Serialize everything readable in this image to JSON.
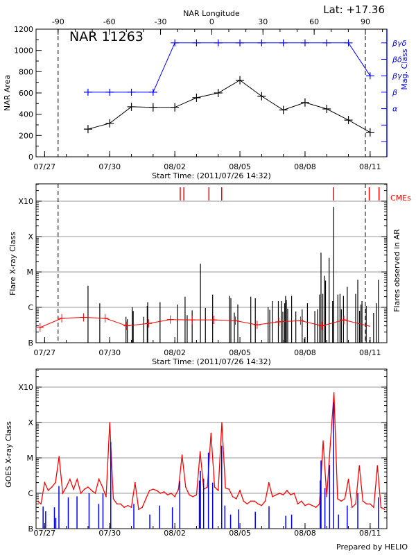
{
  "header": {
    "lat_label": "Lat: +17.36",
    "credit": "Prepared by HELIO"
  },
  "colors": {
    "area": "#000000",
    "mag": "#0000ff",
    "avg": "#ff0000",
    "cme": "#ff0000",
    "flare": "#000000",
    "goes_long": "#ff0000",
    "goes_short": "#0000ff",
    "grid": "#999999"
  },
  "chart_data": [
    {
      "type": "line",
      "title": "NAR 11263",
      "xlabel": "Start Time: (2011/07/26 14:32)",
      "ylabel": "NAR Area",
      "y2label": "Mag. Class",
      "top_axis_label": "NAR Longitude",
      "top_axis_ticks": [
        -90,
        -60,
        -30,
        0,
        30,
        60,
        90
      ],
      "ylim": [
        0,
        1200
      ],
      "yticks": [
        0,
        200,
        400,
        600,
        800,
        1000,
        1200
      ],
      "x_tick_labels": [
        "07/27",
        "07/30",
        "08/02",
        "08/05",
        "08/08",
        "08/11"
      ],
      "mag_levels": [
        "",
        "",
        "α",
        "β",
        "βγ",
        "βδ",
        "βγδ"
      ],
      "limb_longitudes": [
        -90,
        90
      ],
      "series": [
        {
          "name": "NAR Area",
          "x": [
            "2011-07-29T00:00",
            "2011-07-30T00:00",
            "2011-07-31T00:00",
            "2011-08-01T00:00",
            "2011-08-02T00:00",
            "2011-08-03T00:00",
            "2011-08-04T00:00",
            "2011-08-05T00:00",
            "2011-08-06T00:00",
            "2011-08-07T00:00",
            "2011-08-08T00:00",
            "2011-08-09T00:00",
            "2011-08-10T00:00",
            "2011-08-11T00:00"
          ],
          "values": [
            260,
            315,
            470,
            465,
            465,
            555,
            600,
            720,
            570,
            440,
            510,
            450,
            345,
            230
          ]
        },
        {
          "name": "Mag. Class",
          "x": [
            "2011-07-29T00:00",
            "2011-07-30T00:00",
            "2011-07-31T00:00",
            "2011-08-01T00:00",
            "2011-08-02T00:00",
            "2011-08-03T00:00",
            "2011-08-04T00:00",
            "2011-08-05T00:00",
            "2011-08-06T00:00",
            "2011-08-07T00:00",
            "2011-08-08T00:00",
            "2011-08-09T00:00",
            "2011-08-10T00:00",
            "2011-08-11T00:00"
          ],
          "values": [
            "β",
            "β",
            "β",
            "β",
            "βγδ",
            "βγδ",
            "βγδ",
            "βγδ",
            "βγδ",
            "βγδ",
            "βγδ",
            "βγδ",
            "βγδ",
            "βγ"
          ]
        }
      ]
    },
    {
      "type": "bar",
      "xlabel": "Start Time: (2011/07/26 14:32)",
      "ylabel": "Flare X-ray Class",
      "y2label": "Flares observed in AR",
      "cme_label": "CMEs",
      "y_scale": "log",
      "yticks": [
        "B",
        "C",
        "M",
        "X",
        "X10"
      ],
      "grid": true,
      "x_tick_labels": [
        "07/27",
        "07/30",
        "08/02",
        "08/05",
        "08/08",
        "08/11"
      ],
      "flares": [
        [
          "2011-07-29T00:00",
          "C4.1"
        ],
        [
          "2011-07-29T13:00",
          "C1.3"
        ],
        [
          "2011-07-30T18:00",
          "B5.4"
        ],
        [
          "2011-07-30T19:30",
          "B4.6"
        ],
        [
          "2011-07-31T01:00",
          "C1.0"
        ],
        [
          "2011-07-31T02:00",
          "B7.9"
        ],
        [
          "2011-07-31T13:40",
          "B5.4"
        ],
        [
          "2011-07-31T17:30",
          "C1.1"
        ],
        [
          "2011-07-31T18:00",
          "C1.4"
        ],
        [
          "2011-08-01T07:40",
          "C1.4"
        ],
        [
          "2011-08-02T03:00",
          "C1.2"
        ],
        [
          "2011-08-02T11:20",
          "C2.0"
        ],
        [
          "2011-08-02T13:40",
          "B6.0"
        ],
        [
          "2011-08-02T19:10",
          "B8.2"
        ],
        [
          "2011-08-03T04:20",
          "M1.7"
        ],
        [
          "2011-08-03T09:50",
          "B9.6"
        ],
        [
          "2011-08-03T17:50",
          "C2.3"
        ],
        [
          "2011-08-04T12:30",
          "C2.1"
        ],
        [
          "2011-08-04T14:00",
          "C1.8"
        ],
        [
          "2011-08-04T17:50",
          "B7.1"
        ],
        [
          "2011-08-04T21:40",
          "C1.2"
        ],
        [
          "2011-08-05T12:00",
          "C2.0"
        ],
        [
          "2011-08-05T17:00",
          "C1.8"
        ],
        [
          "2011-08-06T07:10",
          "C1.0"
        ],
        [
          "2011-08-06T09:00",
          "B8.5"
        ],
        [
          "2011-08-06T12:00",
          "C1.5"
        ],
        [
          "2011-08-06T18:30",
          "C1.5"
        ],
        [
          "2011-08-06T22:00",
          "C1.5"
        ],
        [
          "2011-08-06T23:30",
          "B7.5"
        ],
        [
          "2011-08-07T01:30",
          "C1.3"
        ],
        [
          "2011-08-07T02:30",
          "C2.1"
        ],
        [
          "2011-08-07T03:20",
          "C1.6"
        ],
        [
          "2011-08-07T04:50",
          "B9.2"
        ],
        [
          "2011-08-07T09:10",
          "C2.1"
        ],
        [
          "2011-08-07T13:50",
          "B7.6"
        ],
        [
          "2011-08-07T20:50",
          "B8.7"
        ],
        [
          "2011-08-07T23:10",
          "B1.3"
        ],
        [
          "2011-08-08T02:40",
          "C1.3"
        ],
        [
          "2011-08-08T10:50",
          "B7.9"
        ],
        [
          "2011-08-08T13:50",
          "B8.8"
        ],
        [
          "2011-08-08T16:10",
          "C2.3"
        ],
        [
          "2011-08-08T17:40",
          "M3.5"
        ],
        [
          "2011-08-08T19:40",
          "C2.4"
        ],
        [
          "2011-08-08T21:30",
          "C7.8"
        ],
        [
          "2011-08-08T22:40",
          "C5.7"
        ],
        [
          "2011-08-09T02:40",
          "M2.5"
        ],
        [
          "2011-08-09T06:30",
          "C1.5"
        ],
        [
          "2011-08-09T07:40",
          "X6.9"
        ],
        [
          "2011-08-09T12:20",
          "C2.3"
        ],
        [
          "2011-08-09T14:40",
          "C2.4"
        ],
        [
          "2011-08-09T16:10",
          "B8.8"
        ],
        [
          "2011-08-09T18:30",
          "C2.1"
        ],
        [
          "2011-08-09T22:40",
          "C3.8"
        ],
        [
          "2011-08-10T08:00",
          "C2.4"
        ],
        [
          "2011-08-10T10:20",
          "C6.0"
        ],
        [
          "2011-08-10T12:20",
          "B8.0"
        ],
        [
          "2011-08-10T13:50",
          "C1.2"
        ],
        [
          "2011-08-10T15:00",
          "C1.5"
        ],
        [
          "2011-08-10T19:40",
          "C1.1"
        ],
        [
          "2011-08-10T23:30",
          "B1.2"
        ],
        [
          "2011-08-11T03:50",
          "B7.0"
        ],
        [
          "2011-08-11T07:00",
          "C1.3"
        ],
        [
          "2011-08-11T09:10",
          "C6.0"
        ]
      ],
      "average": {
        "x": [
          "2011-07-26T19:00",
          "2011-07-27T19:00",
          "2011-07-28T19:00",
          "2011-07-29T19:00",
          "2011-07-30T19:00",
          "2011-07-31T19:00",
          "2011-08-01T19:00",
          "2011-08-02T19:00",
          "2011-08-03T19:00",
          "2011-08-04T19:00",
          "2011-08-05T19:00",
          "2011-08-06T19:00",
          "2011-08-07T19:00",
          "2011-08-08T19:00",
          "2011-08-09T19:00",
          "2011-08-11T00:00"
        ],
        "values": [
          "B2.7",
          "B4.9",
          "B5.2",
          "B4.9",
          "B3.0",
          "B3.5",
          "B4.5",
          "B4.4",
          "B4.4",
          "B4.2",
          "B3.2",
          "B3.9",
          "B4.2",
          "B3.0",
          "B4.4",
          "B2.9"
        ]
      },
      "cmes": [
        "2011-08-02T06:00",
        "2011-08-02T10:00",
        "2011-08-03T13:40",
        "2011-08-04T03:50",
        "2011-08-09T07:40",
        "2011-08-10T23:00",
        "2011-08-11T09:50"
      ]
    },
    {
      "type": "line",
      "ylabel": "GOES X-ray Class",
      "y_scale": "log",
      "yticks": [
        "B",
        "C",
        "M",
        "X",
        "X10"
      ],
      "grid": true,
      "x_tick_labels": [
        "07/27",
        "07/30",
        "08/02",
        "08/05",
        "08/08",
        "08/11"
      ],
      "long_channel": {
        "start": "2011-07-26T16:00",
        "step_hours": 4,
        "values": [
          "B6",
          "B5",
          "C2",
          "C1.2",
          "C1.5",
          "C2",
          "M1.1",
          "C1",
          "C1.5",
          "C2.5",
          "C1.3",
          "C2.5",
          "C1",
          "C1.3",
          "C1.5",
          "C1.2",
          "C1",
          "C2.5",
          "C1.5",
          "B8",
          "X1.0",
          "B7",
          "B5",
          "B5",
          "B4",
          "B4.5",
          "B4",
          "C2",
          "B3.5",
          "B4",
          "B7",
          "C1.2",
          "C1.3",
          "C1.2",
          "C1",
          "C1.1",
          "B9",
          "C1",
          "B8",
          "C1.3",
          "M1.2",
          "C1.5",
          "B9",
          "B8",
          "B9",
          "M1.5",
          "C1.3",
          "C1.5",
          "M5",
          "C1.5",
          "C1.2",
          "X1.0",
          "C1.4",
          "C1.3",
          "B8",
          "B7",
          "C1.2",
          "B6",
          "B5",
          "B6",
          "B6",
          "B5",
          "B4.5",
          "B6",
          "C2",
          "B8",
          "B9",
          "C1",
          "B9",
          "C1.2",
          "B9",
          "C1",
          "B5",
          "B6",
          "B4.5",
          "B5",
          "B4.5",
          "B4",
          "B5",
          "M3",
          "B8",
          "M2.5",
          "X7",
          "B7",
          "B6",
          "B7",
          "C2.5",
          "B4",
          "B5",
          "C6",
          "B6",
          "B5",
          "B5",
          "B4",
          "C6",
          "B4",
          "B3.5"
        ]
      },
      "short_channel_peaks": [
        [
          "2011-07-26T22:20",
          "B4.2"
        ],
        [
          "2011-07-27T01:10",
          "B3.1"
        ],
        [
          "2011-07-27T10:50",
          "B4"
        ],
        [
          "2011-07-27T12:20",
          "B2"
        ],
        [
          "2011-07-27T15:50",
          "C1.6"
        ],
        [
          "2011-07-28T02:10",
          "B7.6"
        ],
        [
          "2011-07-28T11:50",
          "B8.2"
        ],
        [
          "2011-07-29T01:10",
          "C1"
        ],
        [
          "2011-07-29T11:50",
          "B5"
        ],
        [
          "2011-07-29T16:30",
          "C1"
        ],
        [
          "2011-07-30T01:10",
          "M2.8"
        ],
        [
          "2011-07-31T02:40",
          "B5"
        ],
        [
          "2011-07-31T20:20",
          "B2.5"
        ],
        [
          "2011-08-01T07:10",
          "B4.5"
        ],
        [
          "2011-08-01T21:20",
          "B4"
        ],
        [
          "2011-08-02T05:30",
          "C2.2"
        ],
        [
          "2011-08-03T03:10",
          "C2.3"
        ],
        [
          "2011-08-03T04:20",
          "C4.3"
        ],
        [
          "2011-08-03T07:50",
          "C2.6"
        ],
        [
          "2011-08-03T13:10",
          "M1.4"
        ],
        [
          "2011-08-03T17:50",
          "C2"
        ],
        [
          "2011-08-04T03:50",
          "M2.2"
        ],
        [
          "2011-08-04T07:20",
          "B4.5"
        ],
        [
          "2011-08-04T13:40",
          "B2.5"
        ],
        [
          "2011-08-04T22:30",
          "B3.5"
        ],
        [
          "2011-08-05T17:00",
          "B3"
        ],
        [
          "2011-08-06T08:10",
          "B4.3"
        ],
        [
          "2011-08-07T02:40",
          "B2.3"
        ],
        [
          "2011-08-07T09:10",
          "B2.5"
        ],
        [
          "2011-08-08T16:50",
          "C2.3"
        ],
        [
          "2011-08-08T17:40",
          "C8.5"
        ],
        [
          "2011-08-08T22:00",
          "C1.4"
        ],
        [
          "2011-08-09T03:10",
          "C6.3"
        ],
        [
          "2011-08-09T07:40",
          "X3.7"
        ],
        [
          "2011-08-09T13:00",
          "B2.5"
        ],
        [
          "2011-08-09T22:40",
          "B4.5"
        ],
        [
          "2011-08-10T10:20",
          "C1"
        ],
        [
          "2011-08-11T09:10",
          "B7.6"
        ]
      ]
    }
  ]
}
